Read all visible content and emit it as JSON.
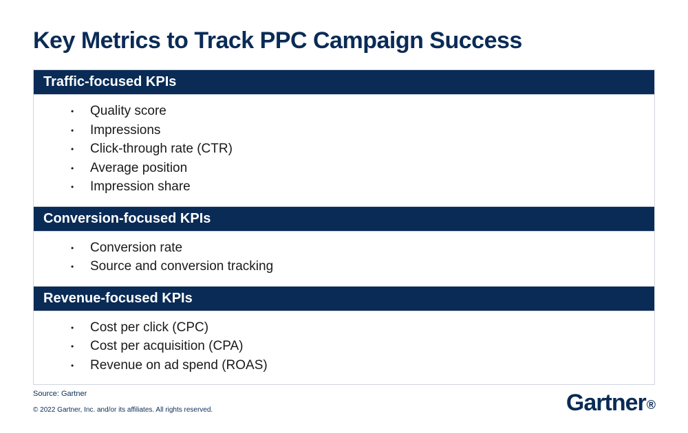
{
  "title": "Key Metrics to Track PPC Campaign Success",
  "colors": {
    "header_bg": "#0a2b56",
    "header_text": "#ffffff",
    "body_text": "#1a1a1a",
    "title_text": "#0a2b56",
    "border": "#d0d6de",
    "footer_text": "#0a2b56",
    "page_bg": "#ffffff"
  },
  "sections": [
    {
      "header": "Traffic-focused KPIs",
      "items": [
        "Quality score",
        "Impressions",
        "Click-through rate (CTR)",
        "Average position",
        "Impression share"
      ]
    },
    {
      "header": "Conversion-focused KPIs",
      "items": [
        "Conversion rate",
        "Source and conversion tracking"
      ]
    },
    {
      "header": "Revenue-focused KPIs",
      "items": [
        "Cost per click (CPC)",
        "Cost per acquisition (CPA)",
        "Revenue on ad spend (ROAS)"
      ]
    }
  ],
  "footer": {
    "source": "Source: Gartner",
    "copyright": "© 2022 Gartner, Inc. and/or its affiliates. All rights reserved."
  },
  "logo": {
    "text": "Gartner",
    "dot": "®"
  }
}
